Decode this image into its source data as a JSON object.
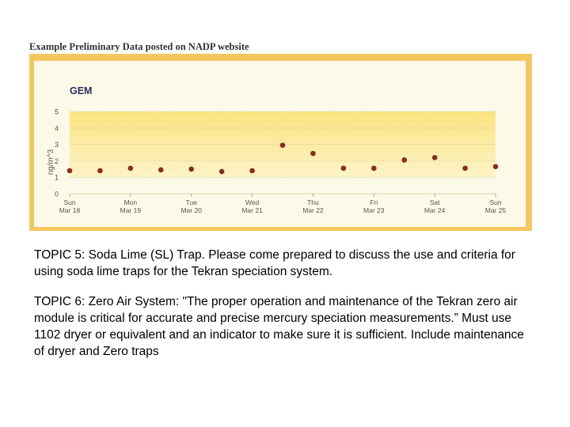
{
  "heading": "Example Preliminary Data posted on NADP website",
  "chart_data": {
    "type": "scatter",
    "title": "GEM",
    "ylabel": "ng/m^3",
    "xlabel": "",
    "ylim": [
      0,
      5
    ],
    "yticks": [
      "0",
      "1",
      "2",
      "3",
      "4",
      "5"
    ],
    "grid": true,
    "x_tick_labels": [
      {
        "day": "Sun",
        "date": "Mar 18"
      },
      {
        "day": "Mon",
        "date": "Mar 19"
      },
      {
        "day": "Tue",
        "date": "Mar 20"
      },
      {
        "day": "Wed",
        "date": "Mar 21"
      },
      {
        "day": "Thu",
        "date": "Mar 22"
      },
      {
        "day": "Fri",
        "date": "Mar 23"
      },
      {
        "day": "Sat",
        "date": "Mar 24"
      },
      {
        "day": "Sun",
        "date": "Mar 25"
      }
    ],
    "x": [
      0,
      0.5,
      1,
      1.5,
      2,
      2.5,
      3,
      3.5,
      4,
      4.5,
      5,
      5.5,
      6,
      6.5,
      7,
      7.5
    ],
    "values": [
      1.4,
      1.4,
      1.55,
      1.45,
      1.5,
      1.35,
      1.4,
      2.95,
      2.45,
      1.55,
      1.55,
      2.05,
      2.2,
      1.55,
      1.65,
      null
    ],
    "colors": {
      "marker": "#8b2a22",
      "band": "#fbe27a",
      "frame": "#f4c860",
      "axis_text": "#555555",
      "title": "#2e2e5e"
    }
  },
  "topics": [
    {
      "bold": "TOPIC 5",
      "label": ": Soda Lime (SL) Trap",
      "text": ". Please come prepared to discuss the use and criteria for using soda lime traps for the Tekran speciation system."
    },
    {
      "bold": "TOPIC 6",
      "label": ": Zero Air System",
      "text": ": \"The proper operation and maintenance of the Tekran zero air module is critical for accurate and precise mercury speciation measurements.” Must use 1102 dryer or equivalent and an indicator to make sure it is sufficient. Include maintenance of dryer and Zero traps"
    }
  ]
}
